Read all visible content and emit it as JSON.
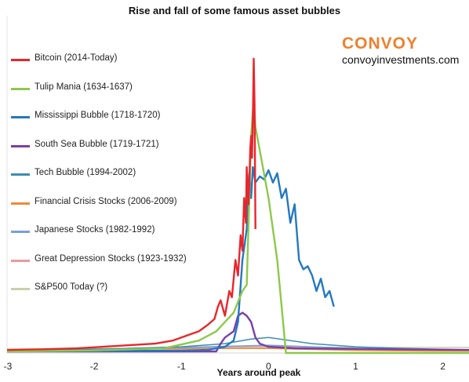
{
  "chart_data": {
    "type": "line",
    "title": "Rise and fall of some famous asset bubbles",
    "xlabel": "Years around peak",
    "ylabel": "",
    "xlim": [
      -3,
      2.3
    ],
    "ylim": [
      0,
      1.0
    ],
    "xticks": [
      "-3",
      "-2",
      "-1",
      "0",
      "1",
      "2"
    ],
    "grid": false,
    "legend_position": "top-left",
    "series": [
      {
        "name": "Bitcoin (2014-Today)",
        "color": "#e8262b",
        "x": [
          -3.0,
          -2.6,
          -2.2,
          -1.9,
          -1.6,
          -1.3,
          -1.1,
          -0.9,
          -0.8,
          -0.7,
          -0.62,
          -0.58,
          -0.55,
          -0.5,
          -0.45,
          -0.42,
          -0.38,
          -0.35,
          -0.32,
          -0.3,
          -0.28,
          -0.26,
          -0.25,
          -0.23,
          -0.22,
          -0.21,
          -0.2,
          -0.19,
          -0.18,
          -0.17,
          -0.16,
          -0.15
        ],
        "y": [
          0.01,
          0.012,
          0.015,
          0.02,
          0.025,
          0.03,
          0.04,
          0.06,
          0.07,
          0.09,
          0.11,
          0.15,
          0.17,
          0.12,
          0.2,
          0.18,
          0.3,
          0.25,
          0.38,
          0.33,
          0.5,
          0.42,
          0.6,
          0.48,
          0.55,
          0.66,
          0.7,
          0.63,
          0.75,
          0.95,
          0.8,
          0.4
        ]
      },
      {
        "name": "Tulip Mania (1634-1637)",
        "color": "#8dc84a",
        "x": [
          -3.0,
          -2.0,
          -1.2,
          -0.8,
          -0.6,
          -0.4,
          -0.3,
          -0.25,
          -0.22,
          -0.2,
          -0.17,
          -0.15,
          0.0,
          0.1,
          0.15,
          0.2,
          0.3,
          1.0,
          2.3
        ],
        "y": [
          0.005,
          0.008,
          0.015,
          0.04,
          0.07,
          0.13,
          0.2,
          0.22,
          0.5,
          0.7,
          0.82,
          0.73,
          0.5,
          0.3,
          0.15,
          0.0,
          0.0,
          0.0,
          0.0
        ]
      },
      {
        "name": "Mississippi Bubble (1718-1720)",
        "color": "#2478c0",
        "x": [
          -3.0,
          -1.5,
          -1.0,
          -0.7,
          -0.5,
          -0.4,
          -0.35,
          -0.3,
          -0.25,
          -0.22,
          -0.2,
          -0.18,
          -0.15,
          -0.1,
          -0.05,
          0.0,
          0.05,
          0.1,
          0.15,
          0.2,
          0.25,
          0.3,
          0.35,
          0.4,
          0.45,
          0.5,
          0.55,
          0.6,
          0.65,
          0.7,
          0.75
        ],
        "y": [
          0.005,
          0.007,
          0.008,
          0.01,
          0.02,
          0.04,
          0.1,
          0.3,
          0.4,
          0.58,
          0.5,
          0.6,
          0.55,
          0.57,
          0.56,
          0.59,
          0.55,
          0.58,
          0.5,
          0.53,
          0.42,
          0.48,
          0.3,
          0.27,
          0.28,
          0.25,
          0.2,
          0.24,
          0.18,
          0.2,
          0.15
        ]
      },
      {
        "name": "South Sea Bubble (1719-1721)",
        "color": "#7a3fa8",
        "x": [
          -3.0,
          -1.0,
          -0.6,
          -0.55,
          -0.5,
          -0.4,
          -0.35,
          -0.3,
          -0.25,
          -0.2,
          -0.15,
          -0.1,
          0.0,
          0.3,
          2.3
        ],
        "y": [
          0.005,
          0.005,
          0.005,
          0.03,
          0.05,
          0.07,
          0.12,
          0.13,
          0.12,
          0.1,
          0.05,
          0.03,
          0.02,
          0.015,
          0.01
        ]
      },
      {
        "name": "Tech Bubble (1994-2002)",
        "color": "#3a8fb0",
        "x": [
          -3.0,
          -2.0,
          -1.0,
          -0.5,
          -0.2,
          0.0,
          0.5,
          1.0,
          1.5,
          2.0,
          2.3
        ],
        "y": [
          0.005,
          0.012,
          0.02,
          0.03,
          0.045,
          0.05,
          0.03,
          0.02,
          0.015,
          0.012,
          0.01
        ]
      },
      {
        "name": "Financial Crisis Stocks (2006-2009)",
        "color": "#f08a3a",
        "x": [
          -3.0,
          -2.0,
          -1.0,
          0.0,
          1.0,
          2.0,
          2.3
        ],
        "y": [
          0.01,
          0.012,
          0.014,
          0.015,
          0.008,
          0.006,
          0.006
        ]
      },
      {
        "name": "Japanese Stocks (1982-1992)",
        "color": "#7a9fd6",
        "x": [
          -3.0,
          -2.0,
          -1.0,
          0.0,
          1.0,
          2.0,
          2.3
        ],
        "y": [
          0.008,
          0.012,
          0.018,
          0.025,
          0.015,
          0.01,
          0.01
        ]
      },
      {
        "name": "Great Depression Stocks (1923-1932)",
        "color": "#e89aa2",
        "x": [
          -3.0,
          -2.0,
          -1.0,
          0.0,
          1.0,
          2.0,
          2.3
        ],
        "y": [
          0.01,
          0.013,
          0.017,
          0.022,
          0.012,
          0.008,
          0.008
        ]
      },
      {
        "name": "S&P500 Today (?)",
        "color": "#c9cfa9",
        "x": [
          -3.0,
          -2.0,
          -1.0,
          0.0,
          1.0,
          2.0,
          2.3
        ],
        "y": [
          0.012,
          0.014,
          0.016,
          0.018,
          0.018,
          0.018,
          0.018
        ]
      }
    ]
  },
  "brand": {
    "name": "CONVOY",
    "url": "convoyinvestments.com"
  }
}
